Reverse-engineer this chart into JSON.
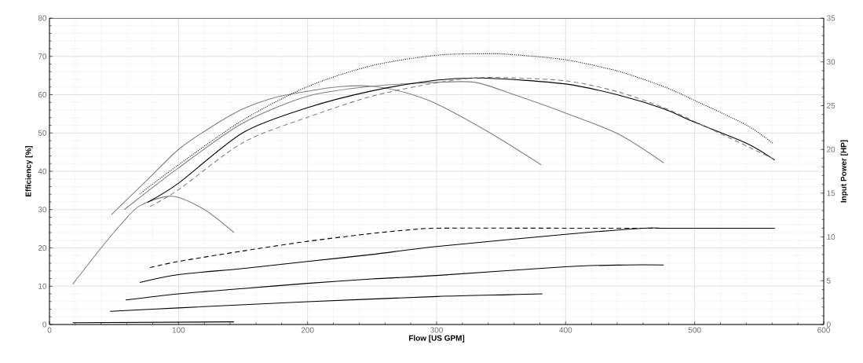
{
  "chart_data": {
    "type": "line",
    "xlabel": "Flow [US GPM]",
    "ylabel": "Efficiency [%]",
    "y2label": "Input Power [HP]",
    "xlim": [
      0,
      600
    ],
    "xticks": [
      0,
      100,
      200,
      300,
      400,
      500,
      600
    ],
    "ylim": [
      0,
      80
    ],
    "yticks": [
      0,
      10,
      20,
      30,
      40,
      50,
      60,
      70,
      80
    ],
    "y2lim": [
      0,
      35
    ],
    "y2ticks": [
      0,
      5,
      10,
      15,
      20,
      25,
      30,
      35
    ],
    "grid": true,
    "series": [
      {
        "color": "#808080",
        "line_style": "solid",
        "x": [
          18,
          40,
          55,
          70,
          95,
          120,
          143
        ],
        "values": [
          10.5,
          20,
          26,
          31,
          33.5,
          30,
          24
        ]
      },
      {
        "color": "#808080",
        "line_style": "solid",
        "x": [
          48,
          75,
          100,
          125,
          150,
          175,
          200,
          225,
          250,
          275,
          300,
          340,
          381
        ],
        "values": [
          28.7,
          37.5,
          45.7,
          51.5,
          56.3,
          59.3,
          60.9,
          62.1,
          62.2,
          60.6,
          57.6,
          50.3,
          41.7
        ]
      },
      {
        "color": "#808080",
        "line_style": "solid",
        "x": [
          58,
          100,
          150,
          200,
          250,
          300,
          330,
          361,
          400,
          441,
          476
        ],
        "values": [
          30,
          40.9,
          52.6,
          59.6,
          62.2,
          63.2,
          63.2,
          59.9,
          55.2,
          49.7,
          42.2
        ]
      },
      {
        "color": "#000000",
        "line_style": "dotted",
        "x": [
          70,
          100,
          150,
          200,
          250,
          300,
          339,
          361,
          400,
          441,
          476,
          500,
          541,
          561
        ],
        "values": [
          34.1,
          41.7,
          53.4,
          62.1,
          67.6,
          70.3,
          70.7,
          70.4,
          69.1,
          66.1,
          62.1,
          58.5,
          51.9,
          47.2
        ]
      },
      {
        "color": "#000000",
        "line_style": "solid",
        "x": [
          76,
          100,
          150,
          200,
          250,
          300,
          339,
          400,
          441,
          476,
          500,
          541,
          562
        ],
        "values": [
          31.9,
          36.9,
          50.1,
          56.6,
          61.0,
          63.8,
          64.3,
          62.8,
          59.9,
          56.3,
          52.8,
          47.2,
          42.9
        ]
      },
      {
        "color": "#808080",
        "line_style": "dashed",
        "x": [
          78,
          100,
          150,
          200,
          250,
          300,
          339,
          400,
          441,
          476,
          500,
          562
        ],
        "values": [
          30.8,
          35.2,
          47.5,
          54.1,
          59.6,
          63.1,
          64.5,
          63.6,
          60.7,
          56.6,
          53.0,
          43.1
        ]
      },
      {
        "color": "#000000",
        "line_style": "dashed",
        "axis": "y2",
        "x": [
          78,
          100,
          150,
          200,
          250,
          278,
          302,
          400,
          500,
          562
        ],
        "values": [
          6.5,
          7.2,
          8.4,
          9.5,
          10.4,
          10.8,
          11.0,
          11.0,
          11.0,
          11.0
        ]
      },
      {
        "color": "#000000",
        "line_style": "solid",
        "axis": "y2",
        "x": [
          70,
          100,
          150,
          200,
          250,
          300,
          400,
          460,
          476,
          500,
          562
        ],
        "values": [
          4.8,
          5.7,
          6.4,
          7.2,
          8.0,
          8.9,
          10.3,
          11.0,
          11.0,
          11.0,
          11.0
        ]
      },
      {
        "color": "#000000",
        "line_style": "solid",
        "axis": "y2",
        "x": [
          59,
          100,
          150,
          200,
          250,
          300,
          400,
          447,
          476
        ],
        "values": [
          2.8,
          3.5,
          4.1,
          4.7,
          5.2,
          5.6,
          6.6,
          6.8,
          6.8
        ]
      },
      {
        "color": "#000000",
        "line_style": "solid",
        "axis": "y2",
        "x": [
          47,
          100,
          200,
          300,
          355,
          382
        ],
        "values": [
          1.5,
          1.9,
          2.6,
          3.2,
          3.4,
          3.5
        ]
      },
      {
        "color": "#000000",
        "line_style": "solid",
        "axis": "y2",
        "x": [
          18,
          143
        ],
        "values": [
          0.2,
          0.3
        ]
      }
    ]
  }
}
